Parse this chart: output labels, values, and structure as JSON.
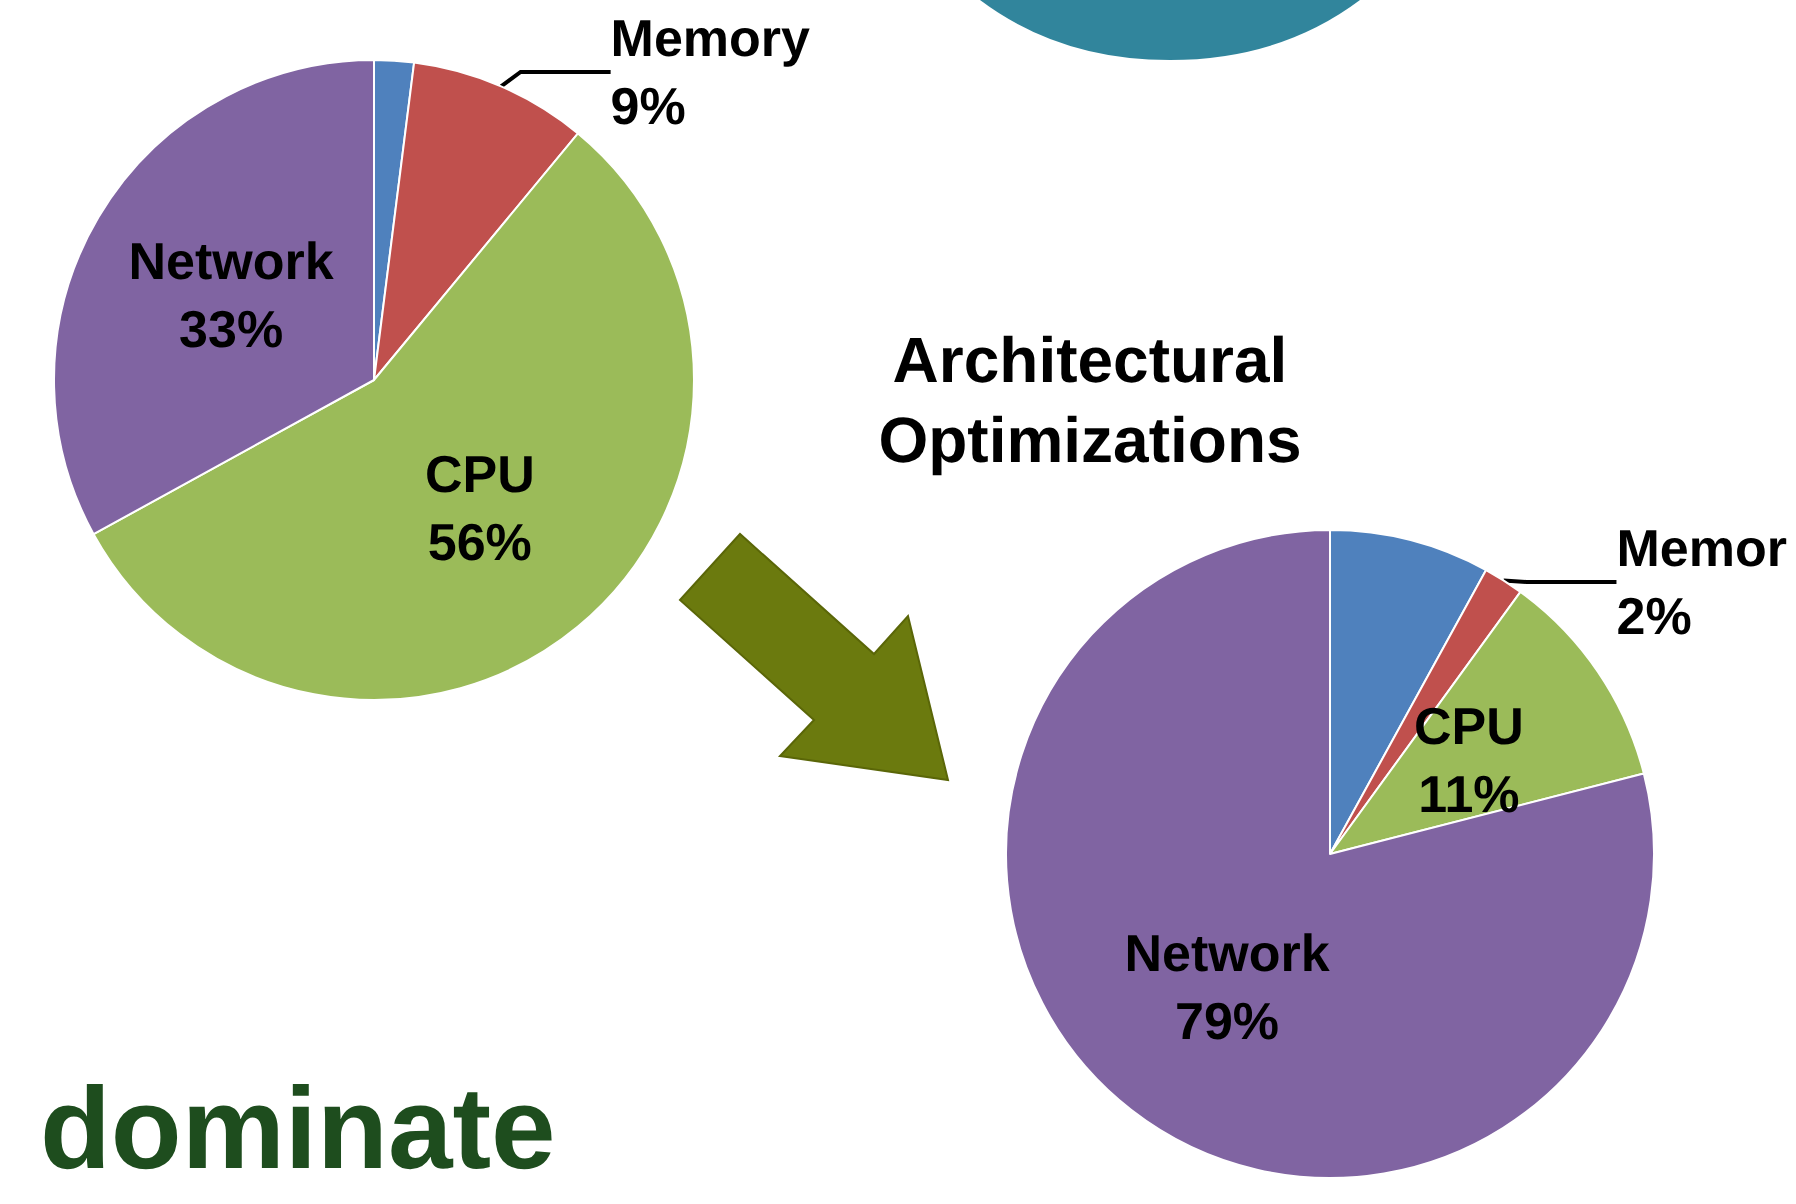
{
  "chart_data": [
    {
      "type": "pie",
      "categories": [
        null,
        "Memory",
        "CPU",
        "Network"
      ],
      "values": [
        2,
        9,
        56,
        33
      ],
      "value_labels": [
        null,
        "9%",
        "56%",
        "33%"
      ],
      "colors": [
        "#4f81bd",
        "#c0504d",
        "#9bbb59",
        "#8064a2"
      ],
      "annotations": [
        "Architectural Optimizations",
        "dominate"
      ]
    },
    {
      "type": "pie",
      "categories": [
        null,
        "Memor",
        "CPU",
        "Network"
      ],
      "values": [
        8,
        2,
        11,
        79
      ],
      "value_labels": [
        null,
        "2%",
        "11%",
        "79%"
      ],
      "colors": [
        "#4f81bd",
        "#c0504d",
        "#9bbb59",
        "#8064a2"
      ]
    }
  ]
}
